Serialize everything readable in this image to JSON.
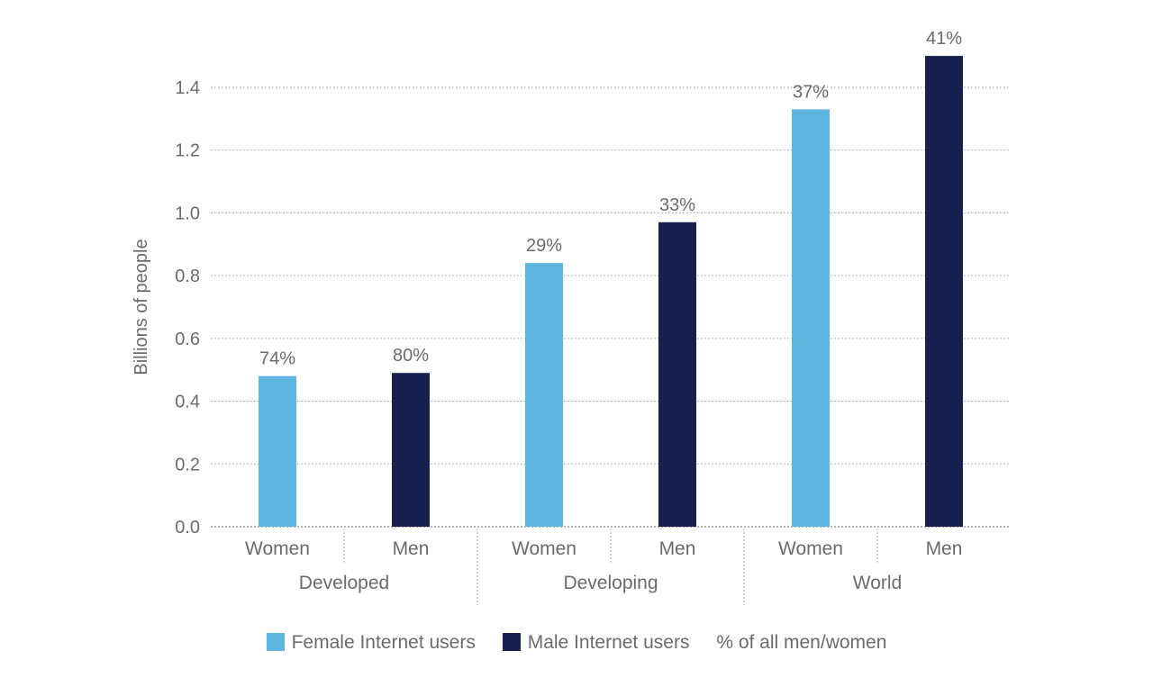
{
  "chart_data": {
    "type": "bar",
    "title": "",
    "ylabel": "Billions of people",
    "xlabel": "",
    "ylim": [
      0,
      1.5
    ],
    "yticks": [
      "0.0",
      "0.2",
      "0.4",
      "0.6",
      "0.8",
      "1.0",
      "1.2",
      "1.4"
    ],
    "ytick_values": [
      0,
      0.2,
      0.4,
      0.6,
      0.8,
      1.0,
      1.2,
      1.4
    ],
    "grid": true,
    "groups": [
      {
        "name": "Developed",
        "bars": [
          {
            "category": "Women",
            "series": "Female Internet users",
            "value": 0.48,
            "label": "74%"
          },
          {
            "category": "Men",
            "series": "Male Internet users",
            "value": 0.49,
            "label": "80%"
          }
        ]
      },
      {
        "name": "Developing",
        "bars": [
          {
            "category": "Women",
            "series": "Female Internet users",
            "value": 0.84,
            "label": "29%"
          },
          {
            "category": "Men",
            "series": "Male Internet users",
            "value": 0.97,
            "label": "33%"
          }
        ]
      },
      {
        "name": "World",
        "bars": [
          {
            "category": "Women",
            "series": "Female Internet users",
            "value": 1.33,
            "label": "37%"
          },
          {
            "category": "Men",
            "series": "Male Internet users",
            "value": 1.5,
            "label": "41%"
          }
        ]
      }
    ],
    "legend": [
      {
        "name": "Female Internet users",
        "color": "#5eb4e0"
      },
      {
        "name": "Male Internet users",
        "color": "#18204f"
      },
      {
        "name": "% of all men/women",
        "color": ""
      }
    ],
    "colors": {
      "Female Internet users": "#5eb4e0",
      "Male Internet users": "#18204f"
    }
  }
}
